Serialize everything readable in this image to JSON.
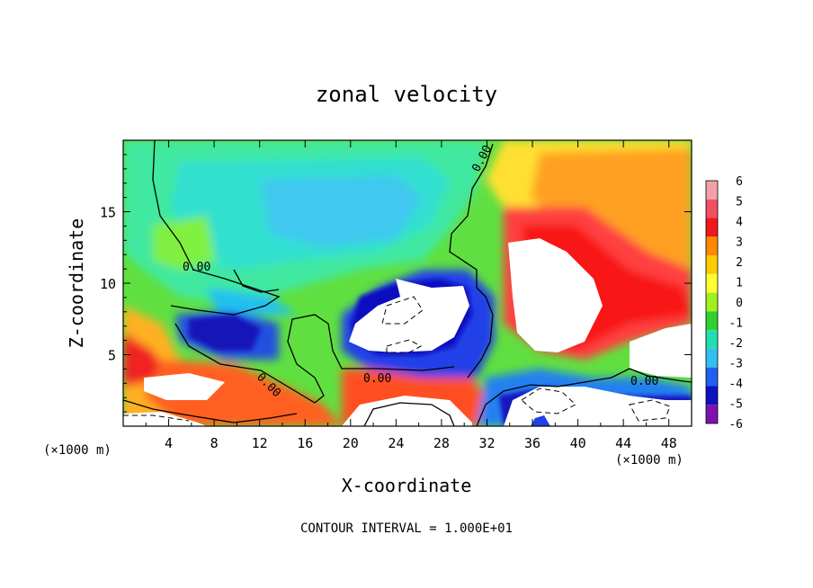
{
  "chart_data": {
    "type": "heatmap",
    "title": "zonal velocity",
    "xlabel": "X-coordinate",
    "ylabel": "Z-coordinate",
    "x_unit": "(×1000 m)",
    "x_unit_right": "(×1000 m)",
    "xlim": [
      0,
      50
    ],
    "ylim": [
      0,
      20
    ],
    "x_ticks": [
      4,
      8,
      12,
      16,
      20,
      24,
      28,
      32,
      36,
      40,
      44,
      48
    ],
    "y_ticks": [
      5,
      10,
      15
    ],
    "colorbar": {
      "levels": [
        6,
        5,
        4,
        3,
        2,
        1,
        0,
        -1,
        -2,
        -3,
        -4,
        -5,
        -6
      ],
      "colors": [
        "#f5a0a8",
        "#f05060",
        "#f01818",
        "#ff8800",
        "#ffcc00",
        "#ffff30",
        "#a0f020",
        "#30d030",
        "#20e0b0",
        "#30c0f0",
        "#2060f0",
        "#1010c0",
        "#8010b0"
      ]
    },
    "contour_labels": [
      "0.00",
      "0.00",
      "0.00",
      "0.00",
      "0.00"
    ],
    "footer": "CONTOUR INTERVAL = 1.000E+01"
  }
}
